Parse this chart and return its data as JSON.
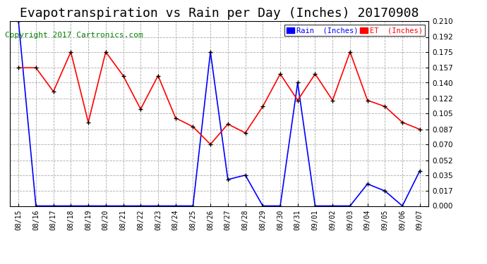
{
  "title": "Evapotranspiration vs Rain per Day (Inches) 20170908",
  "copyright": "Copyright 2017 Cartronics.com",
  "dates": [
    "08/15",
    "08/16",
    "08/17",
    "08/18",
    "08/19",
    "08/20",
    "08/21",
    "08/22",
    "08/23",
    "08/24",
    "08/25",
    "08/26",
    "08/27",
    "08/28",
    "08/29",
    "08/30",
    "08/31",
    "09/01",
    "09/02",
    "09/03",
    "09/04",
    "09/05",
    "09/06",
    "09/07"
  ],
  "rain": [
    0.21,
    0.0,
    0.0,
    0.0,
    0.0,
    0.0,
    0.0,
    0.0,
    0.0,
    0.0,
    0.0,
    0.175,
    0.03,
    0.035,
    0.0,
    0.0,
    0.14,
    0.0,
    0.0,
    0.0,
    0.025,
    0.017,
    0.0,
    0.04
  ],
  "et": [
    0.157,
    0.157,
    0.13,
    0.175,
    0.095,
    0.175,
    0.148,
    0.11,
    0.148,
    0.1,
    0.09,
    0.07,
    0.093,
    0.083,
    0.113,
    0.15,
    0.12,
    0.15,
    0.12,
    0.175,
    0.12,
    0.113,
    0.095,
    0.087
  ],
  "ylim": [
    0.0,
    0.21
  ],
  "yticks": [
    0.0,
    0.017,
    0.035,
    0.052,
    0.07,
    0.087,
    0.105,
    0.122,
    0.14,
    0.157,
    0.175,
    0.192,
    0.21
  ],
  "rain_color": "#0000ff",
  "et_color": "#ff0000",
  "background_color": "#ffffff",
  "grid_color": "#aaaaaa",
  "title_fontsize": 13,
  "copyright_fontsize": 8,
  "legend_rain_label": "Rain  (Inches)",
  "legend_et_label": "ET  (Inches)"
}
